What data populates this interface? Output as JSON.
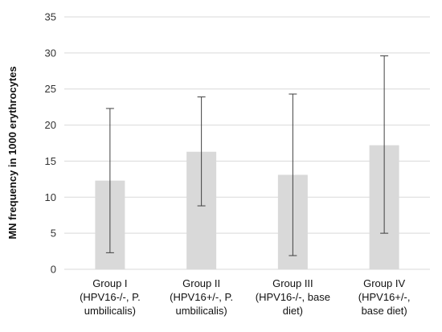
{
  "chart_data": {
    "type": "bar",
    "categories": [
      [
        "Group I",
        "(HPV16-/-, P.",
        "umbilicalis)"
      ],
      [
        "Group II",
        "(HPV16+/-, P.",
        "umbilicalis)"
      ],
      [
        "Group III",
        "(HPV16-/-, base",
        "diet)"
      ],
      [
        "Group IV",
        "(HPV16+/-,",
        "base diet)"
      ]
    ],
    "values": [
      12.3,
      16.3,
      13.1,
      17.2
    ],
    "error_low": [
      2.3,
      8.8,
      1.9,
      5.0
    ],
    "error_high": [
      22.3,
      23.9,
      24.3,
      29.6
    ],
    "title": "",
    "xlabel": "",
    "ylabel": "MN frequency  in 1000  erythrocytes",
    "ylim": [
      0,
      35
    ],
    "yticks": [
      0,
      5,
      10,
      15,
      20,
      25,
      30,
      35
    ],
    "grid": true,
    "colors": {
      "bar": "#d9d9d9",
      "grid": "#d9d9d9",
      "error_bar": "#404040"
    }
  }
}
